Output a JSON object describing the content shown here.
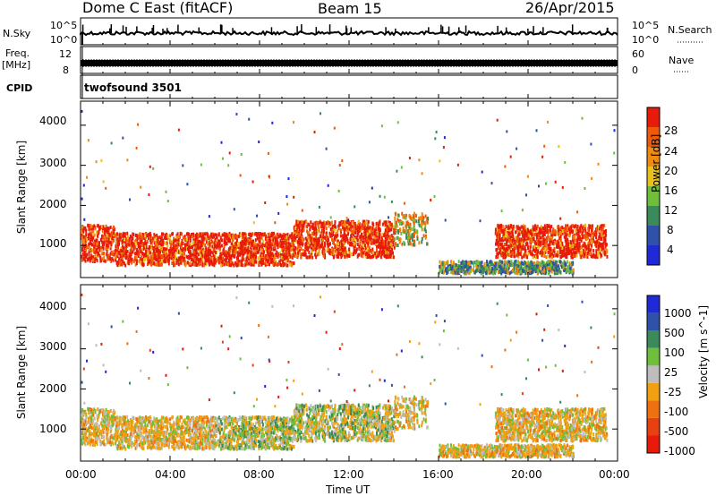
{
  "header": {
    "station": "Dome C East (fitACF)",
    "beam": "Beam 15",
    "date": "26/Apr/2015"
  },
  "strip_labels": {
    "nsky": "N.Sky",
    "nsky_ticks": [
      "10^5",
      "10^0"
    ],
    "nsearch": "N.Search",
    "freq_line1": "Freq.",
    "freq_line2": "[MHz]",
    "freq_ticks": [
      "12",
      "8"
    ],
    "nave": "Nave",
    "nave_ticks": [
      "60",
      "0"
    ],
    "cpid": "CPID",
    "cpid_value": "twofsound 3501"
  },
  "colors": {
    "power_scale": [
      "#1f2ad6",
      "#2f52a8",
      "#3a8a5a",
      "#6fbf3a",
      "#e8c21a",
      "#f08a10",
      "#ee5a0a",
      "#e81a0a"
    ],
    "velocity_scale": [
      "#1f2ad6",
      "#2f52a8",
      "#3a8a5a",
      "#6fbf3a",
      "#bdbdbd",
      "#f0a010",
      "#ee7010",
      "#e84010",
      "#e81a0a"
    ]
  },
  "chart_data": [
    {
      "type": "heatmap",
      "title": "Power",
      "ylabel": "Slant Range [km]",
      "ylim": [
        200,
        4600
      ],
      "yticks": [
        1000,
        2000,
        3000,
        4000
      ],
      "colorbar_label": "Power [dB]",
      "colorbar_ticks": [
        "28",
        "24",
        "20",
        "16",
        "12",
        "8",
        "4"
      ],
      "bands": [
        {
          "t_start": "00:00",
          "t_end": "01:30",
          "range_lo": 600,
          "range_hi": 1500,
          "level": "high"
        },
        {
          "t_start": "01:30",
          "t_end": "09:30",
          "range_lo": 500,
          "range_hi": 1300,
          "level": "high"
        },
        {
          "t_start": "09:30",
          "t_end": "14:00",
          "range_lo": 700,
          "range_hi": 1600,
          "level": "high"
        },
        {
          "t_start": "14:00",
          "t_end": "15:30",
          "range_lo": 1000,
          "range_hi": 1800,
          "level": "medium"
        },
        {
          "t_start": "18:30",
          "t_end": "23:30",
          "range_lo": 700,
          "range_hi": 1500,
          "level": "high"
        },
        {
          "t_start": "16:00",
          "t_end": "22:00",
          "range_lo": 300,
          "range_hi": 600,
          "level": "low"
        }
      ]
    },
    {
      "type": "heatmap",
      "title": "Velocity",
      "ylabel": "Slant Range [km]",
      "xlabel": "Time UT",
      "ylim": [
        200,
        4600
      ],
      "yticks": [
        1000,
        2000,
        3000,
        4000
      ],
      "xticks": [
        "00:00",
        "04:00",
        "08:00",
        "12:00",
        "16:00",
        "20:00",
        "00:00"
      ],
      "colorbar_label": "Velocity [m s^-1]",
      "colorbar_ticks": [
        "1000",
        "500",
        "100",
        "25",
        "-25",
        "-100",
        "-500",
        "-1000"
      ]
    }
  ]
}
